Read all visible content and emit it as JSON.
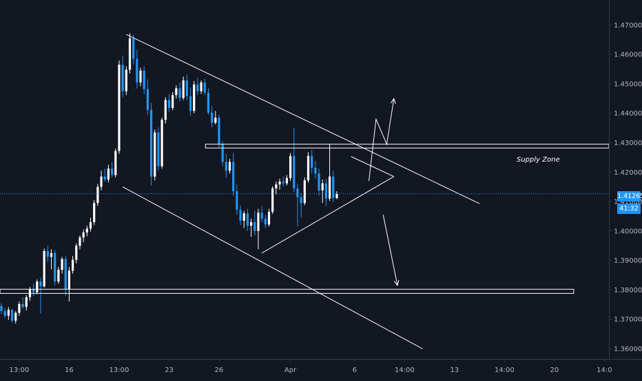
{
  "colors": {
    "background": "#131722",
    "candle_up": "#ffffff",
    "candle_down": "#2196f3",
    "drawing": "#ffffff",
    "price_line": "#2196f3",
    "axis_text": "#b2b5be"
  },
  "price_badge": {
    "price": "1.41265",
    "countdown": "41:32"
  },
  "chart_data": {
    "type": "candlestick",
    "y_axis": {
      "ticks": [
        "1.47000",
        "1.46000",
        "1.45000",
        "1.44000",
        "1.43000",
        "1.42000",
        "1.41000",
        "1.40000",
        "1.39000",
        "1.38000",
        "1.37000",
        "1.36000"
      ],
      "tick_values": [
        1.47,
        1.46,
        1.45,
        1.44,
        1.43,
        1.42,
        1.41,
        1.4,
        1.39,
        1.38,
        1.37,
        1.36
      ],
      "range": [
        1.3565,
        1.4785
      ],
      "position": "right"
    },
    "x_axis": {
      "ticks": [
        "13:00",
        "16",
        "13:00",
        "23",
        "26",
        "Apr",
        "6",
        "14:00",
        "13",
        "14:00",
        "20",
        "14:0"
      ],
      "tick_index": [
        5,
        19,
        33,
        47,
        61,
        81,
        99,
        113,
        127,
        141,
        155,
        169
      ]
    },
    "current_price": 1.41265,
    "candles": [
      [
        1.3745,
        1.3755,
        1.3718,
        1.3728
      ],
      [
        1.3728,
        1.3738,
        1.3705,
        1.3712
      ],
      [
        1.3712,
        1.3742,
        1.3698,
        1.3732
      ],
      [
        1.3732,
        1.3735,
        1.3688,
        1.3695
      ],
      [
        1.3695,
        1.3728,
        1.3685,
        1.3722
      ],
      [
        1.3722,
        1.376,
        1.3712,
        1.3752
      ],
      [
        1.3752,
        1.3775,
        1.3735,
        1.3742
      ],
      [
        1.3742,
        1.3782,
        1.373,
        1.3775
      ],
      [
        1.3775,
        1.381,
        1.3762,
        1.3802
      ],
      [
        1.3802,
        1.382,
        1.3778,
        1.3792
      ],
      [
        1.3792,
        1.3835,
        1.3785,
        1.3828
      ],
      [
        1.3828,
        1.3842,
        1.372,
        1.3812
      ],
      [
        1.3812,
        1.394,
        1.3808,
        1.3932
      ],
      [
        1.3932,
        1.395,
        1.3895,
        1.3912
      ],
      [
        1.3912,
        1.3938,
        1.387,
        1.3925
      ],
      [
        1.3925,
        1.3935,
        1.3815,
        1.3828
      ],
      [
        1.3828,
        1.3878,
        1.382,
        1.3868
      ],
      [
        1.3868,
        1.3912,
        1.3855,
        1.3905
      ],
      [
        1.3905,
        1.3915,
        1.378,
        1.3802
      ],
      [
        1.3802,
        1.3878,
        1.376,
        1.3865
      ],
      [
        1.3865,
        1.3915,
        1.3855,
        1.3902
      ],
      [
        1.3902,
        1.3958,
        1.389,
        1.395
      ],
      [
        1.395,
        1.3985,
        1.3938,
        1.3978
      ],
      [
        1.3978,
        1.4005,
        1.3962,
        1.3995
      ],
      [
        1.3995,
        1.4018,
        1.3982,
        1.4008
      ],
      [
        1.4008,
        1.4045,
        1.3998,
        1.403
      ],
      [
        1.403,
        1.4105,
        1.402,
        1.4095
      ],
      [
        1.4095,
        1.416,
        1.4085,
        1.415
      ],
      [
        1.415,
        1.4205,
        1.4138,
        1.4185
      ],
      [
        1.4185,
        1.4212,
        1.4168,
        1.4175
      ],
      [
        1.4175,
        1.4225,
        1.4165,
        1.4212
      ],
      [
        1.4212,
        1.4235,
        1.4182,
        1.419
      ],
      [
        1.419,
        1.428,
        1.4182,
        1.4272
      ],
      [
        1.4272,
        1.458,
        1.4262,
        1.4565
      ],
      [
        1.4565,
        1.4595,
        1.4455,
        1.4475
      ],
      [
        1.4475,
        1.456,
        1.4462,
        1.4548
      ],
      [
        1.4548,
        1.4672,
        1.4535,
        1.4655
      ],
      [
        1.4655,
        1.4668,
        1.4565,
        1.4585
      ],
      [
        1.4585,
        1.4615,
        1.4485,
        1.4505
      ],
      [
        1.4505,
        1.4555,
        1.4492,
        1.4545
      ],
      [
        1.4545,
        1.456,
        1.4465,
        1.4482
      ],
      [
        1.4482,
        1.4515,
        1.4395,
        1.4412
      ],
      [
        1.4412,
        1.4435,
        1.4155,
        1.4185
      ],
      [
        1.4185,
        1.4345,
        1.4172,
        1.4335
      ],
      [
        1.4335,
        1.4352,
        1.4205,
        1.422
      ],
      [
        1.422,
        1.4385,
        1.4212,
        1.4378
      ],
      [
        1.4378,
        1.4455,
        1.4365,
        1.4445
      ],
      [
        1.4445,
        1.4465,
        1.4405,
        1.4418
      ],
      [
        1.4418,
        1.4472,
        1.441,
        1.4462
      ],
      [
        1.4462,
        1.4495,
        1.445,
        1.4485
      ],
      [
        1.4485,
        1.4505,
        1.444,
        1.4452
      ],
      [
        1.4452,
        1.4525,
        1.4445,
        1.4512
      ],
      [
        1.4512,
        1.4532,
        1.4445,
        1.4458
      ],
      [
        1.4458,
        1.4488,
        1.4392,
        1.4408
      ],
      [
        1.4408,
        1.451,
        1.44,
        1.4498
      ],
      [
        1.4498,
        1.452,
        1.4462,
        1.4475
      ],
      [
        1.4475,
        1.4512,
        1.4465,
        1.4505
      ],
      [
        1.4505,
        1.4518,
        1.4462,
        1.447
      ],
      [
        1.447,
        1.4485,
        1.4395,
        1.4402
      ],
      [
        1.4402,
        1.4425,
        1.4352,
        1.4368
      ],
      [
        1.4368,
        1.4408,
        1.4362,
        1.4385
      ],
      [
        1.4385,
        1.4395,
        1.4282,
        1.4295
      ],
      [
        1.4295,
        1.4305,
        1.422,
        1.4235
      ],
      [
        1.4235,
        1.4262,
        1.4182,
        1.4205
      ],
      [
        1.4205,
        1.4245,
        1.4195,
        1.4235
      ],
      [
        1.4235,
        1.4265,
        1.412,
        1.4135
      ],
      [
        1.4135,
        1.4158,
        1.4055,
        1.4072
      ],
      [
        1.4072,
        1.4088,
        1.402,
        1.4035
      ],
      [
        1.4035,
        1.4068,
        1.401,
        1.406
      ],
      [
        1.406,
        1.4075,
        1.4,
        1.4018
      ],
      [
        1.4018,
        1.4042,
        1.398,
        1.403
      ],
      [
        1.403,
        1.407,
        1.3985,
        1.4
      ],
      [
        1.4,
        1.4075,
        1.3938,
        1.4062
      ],
      [
        1.4062,
        1.4085,
        1.403,
        1.4042
      ],
      [
        1.4042,
        1.4055,
        1.401,
        1.4022
      ],
      [
        1.4022,
        1.4075,
        1.4015,
        1.4065
      ],
      [
        1.4065,
        1.4152,
        1.4058,
        1.4145
      ],
      [
        1.4145,
        1.4168,
        1.4125,
        1.4158
      ],
      [
        1.4158,
        1.4178,
        1.414,
        1.4168
      ],
      [
        1.4168,
        1.4185,
        1.415,
        1.4162
      ],
      [
        1.4162,
        1.419,
        1.4155,
        1.418
      ],
      [
        1.418,
        1.4265,
        1.417,
        1.4255
      ],
      [
        1.4255,
        1.435,
        1.4132,
        1.4145
      ],
      [
        1.4145,
        1.416,
        1.4015,
        1.4115
      ],
      [
        1.4115,
        1.4128,
        1.4045,
        1.4095
      ],
      [
        1.4095,
        1.4182,
        1.4088,
        1.4172
      ],
      [
        1.4172,
        1.4268,
        1.4165,
        1.4255
      ],
      [
        1.4255,
        1.4275,
        1.4195,
        1.4215
      ],
      [
        1.4215,
        1.4238,
        1.4178,
        1.4195
      ],
      [
        1.4195,
        1.4212,
        1.412,
        1.4138
      ],
      [
        1.4138,
        1.4175,
        1.4095,
        1.4162
      ],
      [
        1.4162,
        1.4178,
        1.4085,
        1.411
      ],
      [
        1.411,
        1.4295,
        1.4102,
        1.4185
      ],
      [
        1.4185,
        1.4205,
        1.4098,
        1.4112
      ],
      [
        1.4112,
        1.4135,
        1.4108,
        1.4126
      ]
    ],
    "drawings": {
      "labels": [
        "Supply Zone"
      ],
      "zones": [
        {
          "name": "supply-zone",
          "price_low": 1.4282,
          "price_high": 1.4295
        },
        {
          "name": "support-zone",
          "price_low": 1.3788,
          "price_high": 1.3802
        }
      ],
      "trendlines": [
        {
          "name": "channel-upper-line",
          "from": [
            35,
            1.4668
          ],
          "to": [
            134,
            1.4093
          ]
        },
        {
          "name": "channel-lower-line",
          "from": [
            34,
            1.415
          ],
          "to": [
            118,
            1.36
          ]
        },
        {
          "name": "triangle-lower-line",
          "from": [
            73,
            1.3925
          ],
          "to": [
            110,
            1.4185
          ]
        },
        {
          "name": "triangle-upper-line",
          "from": [
            98,
            1.4253
          ],
          "to": [
            110,
            1.4185
          ]
        }
      ],
      "arrows": [
        {
          "name": "bullish-scenario-arrow",
          "points": [
            [
              103,
              1.417
            ],
            [
              105,
              1.438
            ],
            [
              108,
              1.4295
            ],
            [
              110,
              1.445
            ]
          ]
        },
        {
          "name": "bearish-scenario-arrow",
          "points": [
            [
              107,
              1.4055
            ],
            [
              111,
              1.3815
            ]
          ]
        }
      ]
    }
  }
}
